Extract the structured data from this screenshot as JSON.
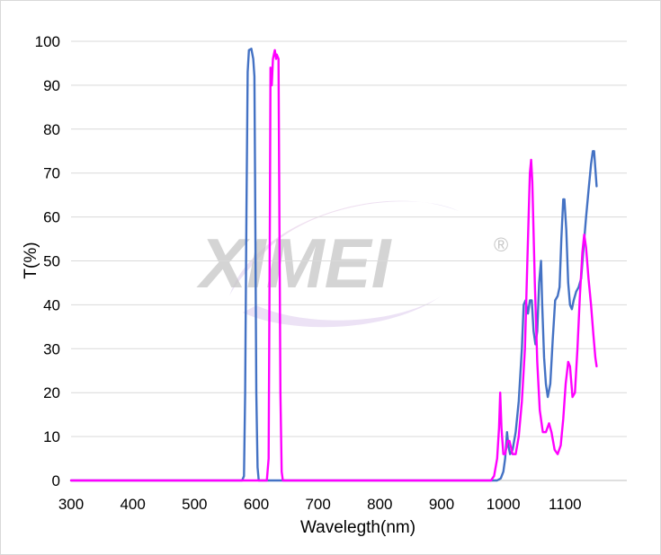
{
  "watermark": {
    "text": "XIMEI",
    "mark": "®"
  },
  "chart_data": {
    "type": "line",
    "title": "",
    "xlabel": "Wavelegth(nm)",
    "ylabel": "T(%)",
    "xlim": [
      300,
      1200
    ],
    "ylim": [
      0,
      100
    ],
    "xticks": [
      300,
      400,
      500,
      600,
      700,
      800,
      900,
      1000,
      1100
    ],
    "yticks": [
      0,
      10,
      20,
      30,
      40,
      50,
      60,
      70,
      80,
      90,
      100
    ],
    "grid": "horizontal",
    "legend": "none",
    "series": [
      {
        "color": "#4472c4",
        "points": [
          [
            300,
            0
          ],
          [
            577,
            0
          ],
          [
            580,
            1
          ],
          [
            582,
            20
          ],
          [
            584,
            60
          ],
          [
            586,
            93
          ],
          [
            588,
            98
          ],
          [
            592,
            98.3
          ],
          [
            595,
            96
          ],
          [
            597,
            92
          ],
          [
            598,
            70
          ],
          [
            600,
            20
          ],
          [
            602,
            3
          ],
          [
            604,
            0
          ],
          [
            990,
            0
          ],
          [
            996,
            0.5
          ],
          [
            1000,
            2
          ],
          [
            1003,
            5
          ],
          [
            1006,
            11
          ],
          [
            1008,
            8
          ],
          [
            1011,
            6
          ],
          [
            1015,
            7
          ],
          [
            1020,
            11
          ],
          [
            1025,
            18
          ],
          [
            1030,
            30
          ],
          [
            1033,
            40
          ],
          [
            1036,
            41
          ],
          [
            1040,
            38
          ],
          [
            1043,
            41
          ],
          [
            1046,
            41
          ],
          [
            1049,
            34
          ],
          [
            1052,
            31
          ],
          [
            1055,
            34
          ],
          [
            1058,
            45
          ],
          [
            1061,
            50
          ],
          [
            1063,
            40
          ],
          [
            1066,
            28
          ],
          [
            1069,
            22
          ],
          [
            1072,
            19
          ],
          [
            1076,
            22
          ],
          [
            1080,
            32
          ],
          [
            1084,
            41
          ],
          [
            1088,
            42
          ],
          [
            1091,
            44
          ],
          [
            1094,
            55
          ],
          [
            1097,
            64
          ],
          [
            1099,
            64
          ],
          [
            1102,
            57
          ],
          [
            1105,
            45
          ],
          [
            1108,
            40
          ],
          [
            1111,
            39
          ],
          [
            1114,
            41
          ],
          [
            1118,
            43
          ],
          [
            1122,
            44
          ],
          [
            1126,
            46
          ],
          [
            1130,
            53
          ],
          [
            1134,
            60
          ],
          [
            1138,
            66
          ],
          [
            1142,
            72
          ],
          [
            1145,
            75
          ],
          [
            1147,
            75
          ],
          [
            1149,
            71
          ],
          [
            1151,
            67
          ]
        ]
      },
      {
        "color": "#ff00ff",
        "points": [
          [
            300,
            0
          ],
          [
            617,
            0
          ],
          [
            620,
            5
          ],
          [
            622,
            60
          ],
          [
            623,
            94
          ],
          [
            625,
            90
          ],
          [
            627,
            96
          ],
          [
            630,
            98
          ],
          [
            632,
            96
          ],
          [
            633,
            97
          ],
          [
            636,
            96
          ],
          [
            637,
            70
          ],
          [
            639,
            20
          ],
          [
            641,
            2
          ],
          [
            643,
            0
          ],
          [
            980,
            0
          ],
          [
            985,
            1
          ],
          [
            990,
            5
          ],
          [
            993,
            12
          ],
          [
            995,
            20
          ],
          [
            997,
            12
          ],
          [
            1000,
            6
          ],
          [
            1003,
            6
          ],
          [
            1007,
            9
          ],
          [
            1010,
            9
          ],
          [
            1015,
            6
          ],
          [
            1020,
            6
          ],
          [
            1025,
            10
          ],
          [
            1030,
            18
          ],
          [
            1035,
            30
          ],
          [
            1039,
            50
          ],
          [
            1043,
            70
          ],
          [
            1045,
            73
          ],
          [
            1047,
            68
          ],
          [
            1051,
            45
          ],
          [
            1055,
            27
          ],
          [
            1059,
            16
          ],
          [
            1064,
            11
          ],
          [
            1069,
            11
          ],
          [
            1074,
            13
          ],
          [
            1078,
            11
          ],
          [
            1083,
            7
          ],
          [
            1088,
            6
          ],
          [
            1093,
            8
          ],
          [
            1097,
            14
          ],
          [
            1101,
            22
          ],
          [
            1105,
            27
          ],
          [
            1108,
            26
          ],
          [
            1112,
            19
          ],
          [
            1116,
            20
          ],
          [
            1120,
            30
          ],
          [
            1124,
            42
          ],
          [
            1128,
            52
          ],
          [
            1131,
            56
          ],
          [
            1134,
            53
          ],
          [
            1138,
            46
          ],
          [
            1142,
            40
          ],
          [
            1146,
            33
          ],
          [
            1149,
            28
          ],
          [
            1151,
            26
          ]
        ]
      }
    ]
  }
}
